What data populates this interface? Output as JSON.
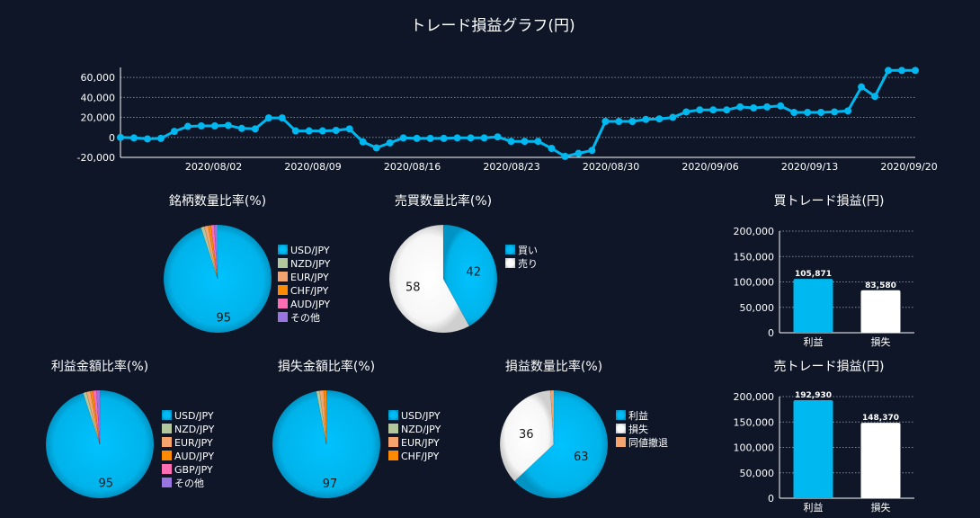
{
  "page": {
    "title": "トレード損益グラフ(円)",
    "bg": "#0e1627"
  },
  "colors": {
    "cyan": "#00b8f0",
    "white": "#ffffff",
    "sage": "#b3c79c",
    "peach": "#f4a46c",
    "orange": "#ff8a00",
    "pink": "#ff6eb4",
    "purple": "#9a74e0",
    "grid": "#7f8896"
  },
  "chart_data": [
    {
      "type": "line",
      "title": "トレード損益グラフ(円)",
      "x_tick_labels": [
        "2020/08/02",
        "2020/08/09",
        "2020/08/16",
        "2020/08/23",
        "2020/08/30",
        "2020/09/06",
        "2020/09/13",
        "2020/09/20"
      ],
      "y_tick_labels": [
        "60,000",
        "40,000",
        "20,000",
        "0",
        "-20,000"
      ],
      "ylim": [
        -20000,
        70000
      ],
      "grid": "horizontal dotted",
      "series": [
        {
          "values": [
            0,
            -500,
            -1500,
            -1000,
            6000,
            11000,
            11500,
            11500,
            12000,
            9000,
            8500,
            19500,
            19500,
            6500,
            6500,
            6500,
            7000,
            8500,
            -4500,
            -10500,
            -5500,
            -500,
            -1000,
            -1000,
            -1000,
            -500,
            -500,
            -500,
            500,
            -4000,
            -4000,
            -4000,
            -11000,
            -19000,
            -16000,
            -13000,
            16000,
            16000,
            16000,
            18000,
            18500,
            20000,
            25500,
            27500,
            27500,
            27500,
            30500,
            29500,
            30500,
            31500,
            25000,
            25000,
            25000,
            25500,
            26500,
            50500,
            41000,
            67000,
            67000,
            67000
          ]
        }
      ]
    },
    {
      "type": "pie",
      "title": "銘柄数量比率(%)",
      "legend": [
        "USD/JPY",
        "NZD/JPY",
        "EUR/JPY",
        "CHF/JPY",
        "AUD/JPY",
        "その他"
      ],
      "legend_placement": "right",
      "values": [
        95,
        1,
        1.2,
        0.8,
        1,
        1
      ],
      "value_labels": [
        "95",
        "",
        "",
        "",
        "",
        ""
      ]
    },
    {
      "type": "pie",
      "title": "売買数量比率(%)",
      "legend": [
        "買い",
        "売り"
      ],
      "legend_placement": "right",
      "values": [
        42,
        58
      ],
      "value_labels": [
        "42",
        "58"
      ]
    },
    {
      "type": "bar",
      "title": "買トレード損益(円)",
      "categories": [
        "利益",
        "損失"
      ],
      "values": [
        105871,
        83580
      ],
      "value_labels": [
        "105,871",
        "83,580"
      ],
      "y_tick_labels": [
        "200,000",
        "150,000",
        "100,000",
        "50,000",
        "0"
      ],
      "ylim": [
        0,
        200000
      ]
    },
    {
      "type": "pie",
      "title": "利益金額比率(%)",
      "legend": [
        "USD/JPY",
        "NZD/JPY",
        "EUR/JPY",
        "AUD/JPY",
        "GBP/JPY",
        "その他"
      ],
      "legend_placement": "right",
      "values": [
        95,
        1,
        1.2,
        0.8,
        1,
        1
      ],
      "value_labels": [
        "95",
        "",
        "",
        "",
        "",
        ""
      ]
    },
    {
      "type": "pie",
      "title": "損失金額比率(%)",
      "legend": [
        "USD/JPY",
        "NZD/JPY",
        "EUR/JPY",
        "CHF/JPY"
      ],
      "legend_placement": "right",
      "values": [
        97,
        1,
        1.2,
        0.8
      ],
      "value_labels": [
        "97",
        "",
        "",
        ""
      ]
    },
    {
      "type": "pie",
      "title": "損益数量比率(%)",
      "legend": [
        "利益",
        "損失",
        "同値撤退"
      ],
      "legend_placement": "right",
      "values": [
        63,
        36,
        1
      ],
      "value_labels": [
        "63",
        "36",
        ""
      ]
    },
    {
      "type": "bar",
      "title": "売トレード損益(円)",
      "categories": [
        "利益",
        "損失"
      ],
      "values": [
        192930,
        148370
      ],
      "value_labels": [
        "192,930",
        "148,370"
      ],
      "y_tick_labels": [
        "200,000",
        "150,000",
        "100,000",
        "50,000",
        "0"
      ],
      "ylim": [
        0,
        200000
      ]
    }
  ]
}
